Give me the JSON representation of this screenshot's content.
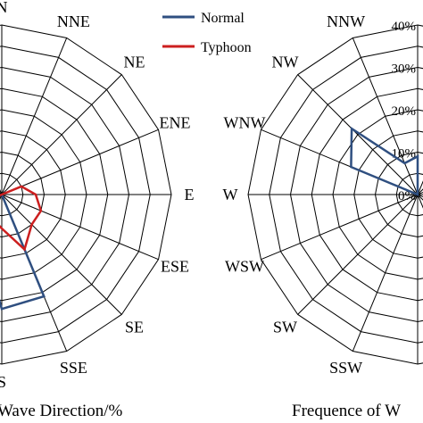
{
  "legend": {
    "items": [
      {
        "label": "Normal",
        "color": "#2f4f80"
      },
      {
        "label": "Typhoon",
        "color": "#cc1f1f"
      }
    ]
  },
  "chart_data": [
    {
      "type": "radar",
      "position": "left",
      "caption": "Wave Direction/%",
      "directions": [
        "N",
        "NNE",
        "NE",
        "ENE",
        "E",
        "ESE",
        "SE",
        "SSE",
        "S",
        "SSW",
        "SW",
        "WSW",
        "W",
        "WNW",
        "NW",
        "NNW"
      ],
      "rlim": [
        0,
        40
      ],
      "ring_step": 5,
      "series": [
        {
          "name": "Normal",
          "color": "#2f4f80",
          "values": [
            0,
            0,
            0,
            0,
            0,
            0,
            0,
            26,
            27,
            12,
            4,
            1,
            0,
            0,
            0,
            0
          ]
        },
        {
          "name": "Typhoon",
          "color": "#cc1f1f",
          "values": [
            0,
            0,
            0,
            5,
            8,
            10,
            10,
            14,
            8,
            6,
            6,
            6,
            0,
            0,
            0,
            0
          ]
        }
      ],
      "grid": true
    },
    {
      "type": "radar",
      "position": "right",
      "caption": "Frequence of W",
      "directions": [
        "N",
        "NNE",
        "NE",
        "ENE",
        "E",
        "ESE",
        "SE",
        "SSE",
        "S",
        "SSW",
        "SW",
        "WSW",
        "W",
        "WNW",
        "NW",
        "NNW"
      ],
      "tick_labels": [
        "0%",
        "10%",
        "20%",
        "30%",
        "40%"
      ],
      "rlim": [
        0,
        40
      ],
      "ring_step": 5,
      "series": [
        {
          "name": "Normal",
          "color": "#2f4f80",
          "values": [
            9,
            0,
            0,
            0,
            0,
            0,
            0,
            0,
            0,
            0,
            0,
            0,
            0,
            17,
            22,
            8
          ]
        }
      ],
      "grid": true
    }
  ]
}
